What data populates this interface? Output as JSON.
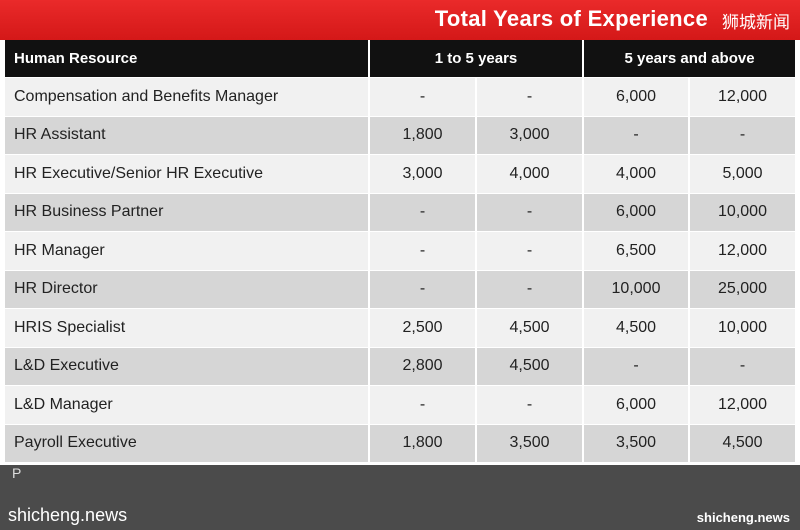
{
  "banner": {
    "title": "Total Years of Experience",
    "watermark": "狮城新闻"
  },
  "table": {
    "headers": [
      "Human Resource",
      "1 to 5 years",
      "5 years and above"
    ],
    "rows": [
      [
        "Compensation and Benefits Manager",
        "-",
        "-",
        "6,000",
        "12,000"
      ],
      [
        "HR Assistant",
        "1,800",
        "3,000",
        "-",
        "-"
      ],
      [
        "HR Executive/Senior HR Executive",
        "3,000",
        "4,000",
        "4,000",
        "5,000"
      ],
      [
        "HR Business Partner",
        "-",
        "-",
        "6,000",
        "10,000"
      ],
      [
        "HR Manager",
        "-",
        "-",
        "6,500",
        "12,000"
      ],
      [
        "HR Director",
        "-",
        "-",
        "10,000",
        "25,000"
      ],
      [
        "HRIS Specialist",
        "2,500",
        "4,500",
        "4,500",
        "10,000"
      ],
      [
        "L&D Executive",
        "2,800",
        "4,500",
        "-",
        "-"
      ],
      [
        "L&D Manager",
        "-",
        "-",
        "6,000",
        "12,000"
      ],
      [
        "Payroll Executive",
        "1,800",
        "3,500",
        "3,500",
        "4,500"
      ]
    ]
  },
  "footer": {
    "partial_text": "P",
    "left_watermark": "shicheng.news",
    "right_watermark": "shicheng.news"
  }
}
